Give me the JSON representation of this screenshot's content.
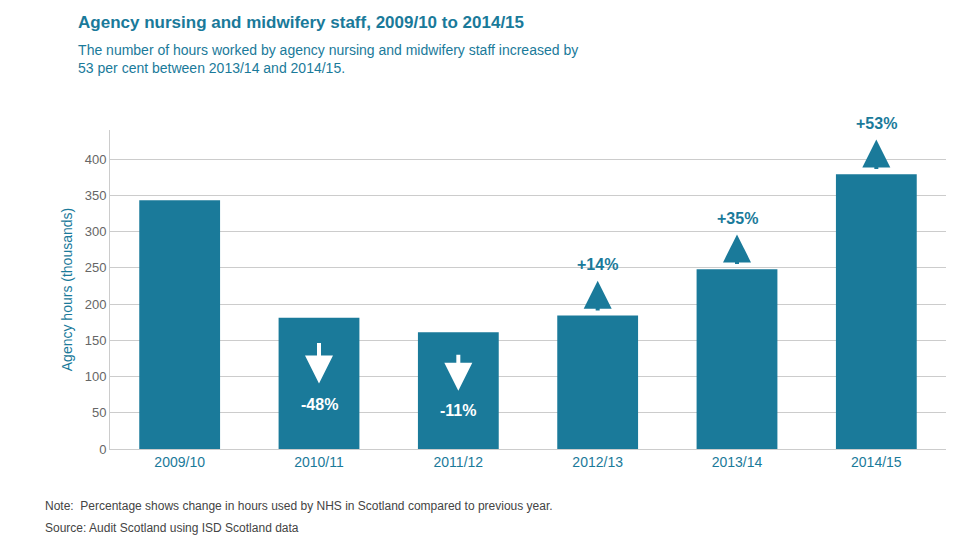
{
  "chart_data": {
    "type": "bar",
    "title": "Agency nursing and midwifery staff, 2009/10 to 2014/15",
    "subtitle": "The number of hours worked by agency nursing and midwifery staff increased by\n53 per cent between 2013/14 and 2014/15.",
    "categories": [
      "2009/10",
      "2010/11",
      "2011/12",
      "2012/13",
      "2013/14",
      "2014/15"
    ],
    "values": [
      343,
      181,
      161,
      184,
      248,
      379
    ],
    "color": "#1a7a9a",
    "ylabel": "Agency hours (thousands)",
    "ylim": [
      0,
      440
    ],
    "yticks": [
      0,
      50,
      100,
      150,
      200,
      250,
      300,
      350,
      400
    ],
    "grid": true,
    "annotations": [
      {
        "category": "2010/11",
        "label": "-48%",
        "direction": "down",
        "color": "#ffffff"
      },
      {
        "category": "2011/12",
        "label": "-11%",
        "direction": "down",
        "color": "#ffffff"
      },
      {
        "category": "2012/13",
        "label": "+14%",
        "direction": "up",
        "color": "#1a7a9a"
      },
      {
        "category": "2013/14",
        "label": "+35%",
        "direction": "up",
        "color": "#1a7a9a"
      },
      {
        "category": "2014/15",
        "label": "+53%",
        "direction": "up",
        "color": "#1a7a9a"
      }
    ],
    "note": "Note:  Percentage shows change in hours used by NHS in Scotland compared to previous year.",
    "source": "Source: Audit Scotland using ISD Scotland data"
  }
}
